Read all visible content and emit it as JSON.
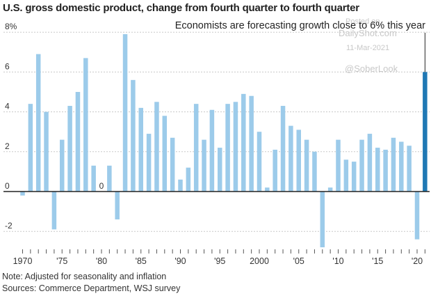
{
  "chart_data": {
    "type": "bar",
    "title": "U.S. gross domestic product, change from fourth quarter to fourth quarter",
    "annotation": "Economists are forecasting growth close to 6% this year",
    "note": "Note: Adjusted for seasonality and inflation",
    "sources": "Sources: Commerce Department, WSJ survey",
    "watermark": {
      "line1": "Posted on",
      "line2": "DailyShot.com",
      "date": "11-Mar-2021",
      "handle": "@SoberLook"
    },
    "ylim": [
      -3,
      8
    ],
    "y_ticks": [
      {
        "value": 8,
        "label": "8%"
      },
      {
        "value": 6,
        "label": "6"
      },
      {
        "value": 4,
        "label": "4"
      },
      {
        "value": 2,
        "label": "2"
      },
      {
        "value": 0,
        "label": "0"
      },
      {
        "value": -2,
        "label": "-2"
      }
    ],
    "x_ticks": [
      {
        "year": 1970,
        "label": "1970"
      },
      {
        "year": 1975,
        "label": "'75"
      },
      {
        "year": 1980,
        "label": "'80"
      },
      {
        "year": 1985,
        "label": "'85"
      },
      {
        "year": 1990,
        "label": "'90"
      },
      {
        "year": 1995,
        "label": "'95"
      },
      {
        "year": 2000,
        "label": "2000"
      },
      {
        "year": 2005,
        "label": "'05"
      },
      {
        "year": 2010,
        "label": "'10"
      },
      {
        "year": 2015,
        "label": "'15"
      },
      {
        "year": 2020,
        "label": "'20"
      }
    ],
    "zero_label": {
      "year": 1980,
      "label": "0"
    },
    "categories": [
      1970,
      1971,
      1972,
      1973,
      1974,
      1975,
      1976,
      1977,
      1978,
      1979,
      1980,
      1981,
      1982,
      1983,
      1984,
      1985,
      1986,
      1987,
      1988,
      1989,
      1990,
      1991,
      1992,
      1993,
      1994,
      1995,
      1996,
      1997,
      1998,
      1999,
      2000,
      2001,
      2002,
      2003,
      2004,
      2005,
      2006,
      2007,
      2008,
      2009,
      2010,
      2011,
      2012,
      2013,
      2014,
      2015,
      2016,
      2017,
      2018,
      2019,
      2020,
      2021
    ],
    "values": [
      -0.2,
      4.4,
      6.9,
      4.0,
      -1.9,
      2.6,
      4.3,
      5.0,
      6.7,
      1.3,
      0.0,
      1.3,
      -1.4,
      7.9,
      5.6,
      4.2,
      2.9,
      4.5,
      3.8,
      2.7,
      0.6,
      1.2,
      4.4,
      2.6,
      4.1,
      2.2,
      4.4,
      4.5,
      4.9,
      4.8,
      3.0,
      0.2,
      2.1,
      4.3,
      3.3,
      3.1,
      2.6,
      2.0,
      -2.8,
      0.2,
      2.6,
      1.6,
      1.5,
      2.6,
      2.9,
      2.2,
      2.1,
      2.7,
      2.5,
      2.3,
      -2.4,
      6.0
    ],
    "forecast_year": 2021,
    "colors": {
      "bar": "#9ccbea",
      "forecast": "#1f78b4",
      "grid": "#c8c8c8",
      "zero_line": "#222222"
    },
    "grid": true
  }
}
